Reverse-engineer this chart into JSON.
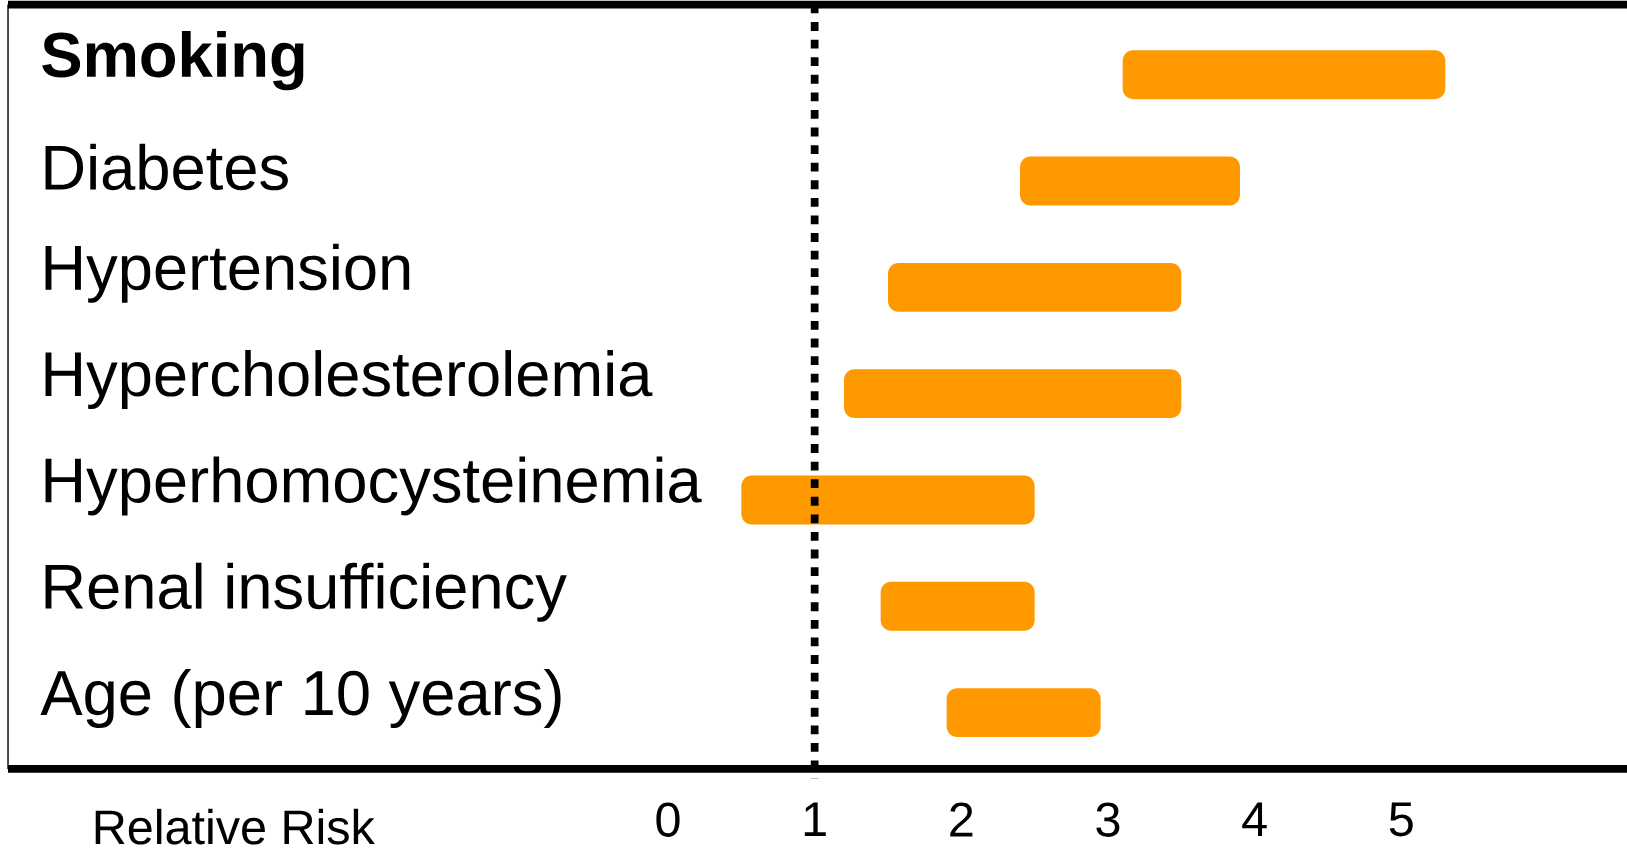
{
  "chart_data": {
    "type": "bar",
    "orientation": "horizontal",
    "xlabel": "Relative Risk",
    "categories": [
      "**Smoking**",
      "Diabetes",
      "Hypertension",
      "Hypercholesterolemia",
      "Hyperhomocysteinemia",
      "Renal insufficiency",
      "Age (per 10 years)"
    ],
    "base": [
      3.1,
      2.4,
      1.5,
      1.2,
      0.5,
      1.45,
      1.9
    ],
    "values": [
      2.2,
      1.5,
      2.0,
      2.3,
      2.0,
      1.05,
      1.05
    ],
    "color": "#ff9900",
    "xlim": [
      -4.5,
      6.6
    ],
    "xticks": [
      0,
      1,
      2,
      3,
      4,
      5
    ],
    "ref_lines": [
      {
        "axis": "x",
        "value": 1,
        "line_style": "dotted",
        "color": "#000000"
      }
    ]
  }
}
